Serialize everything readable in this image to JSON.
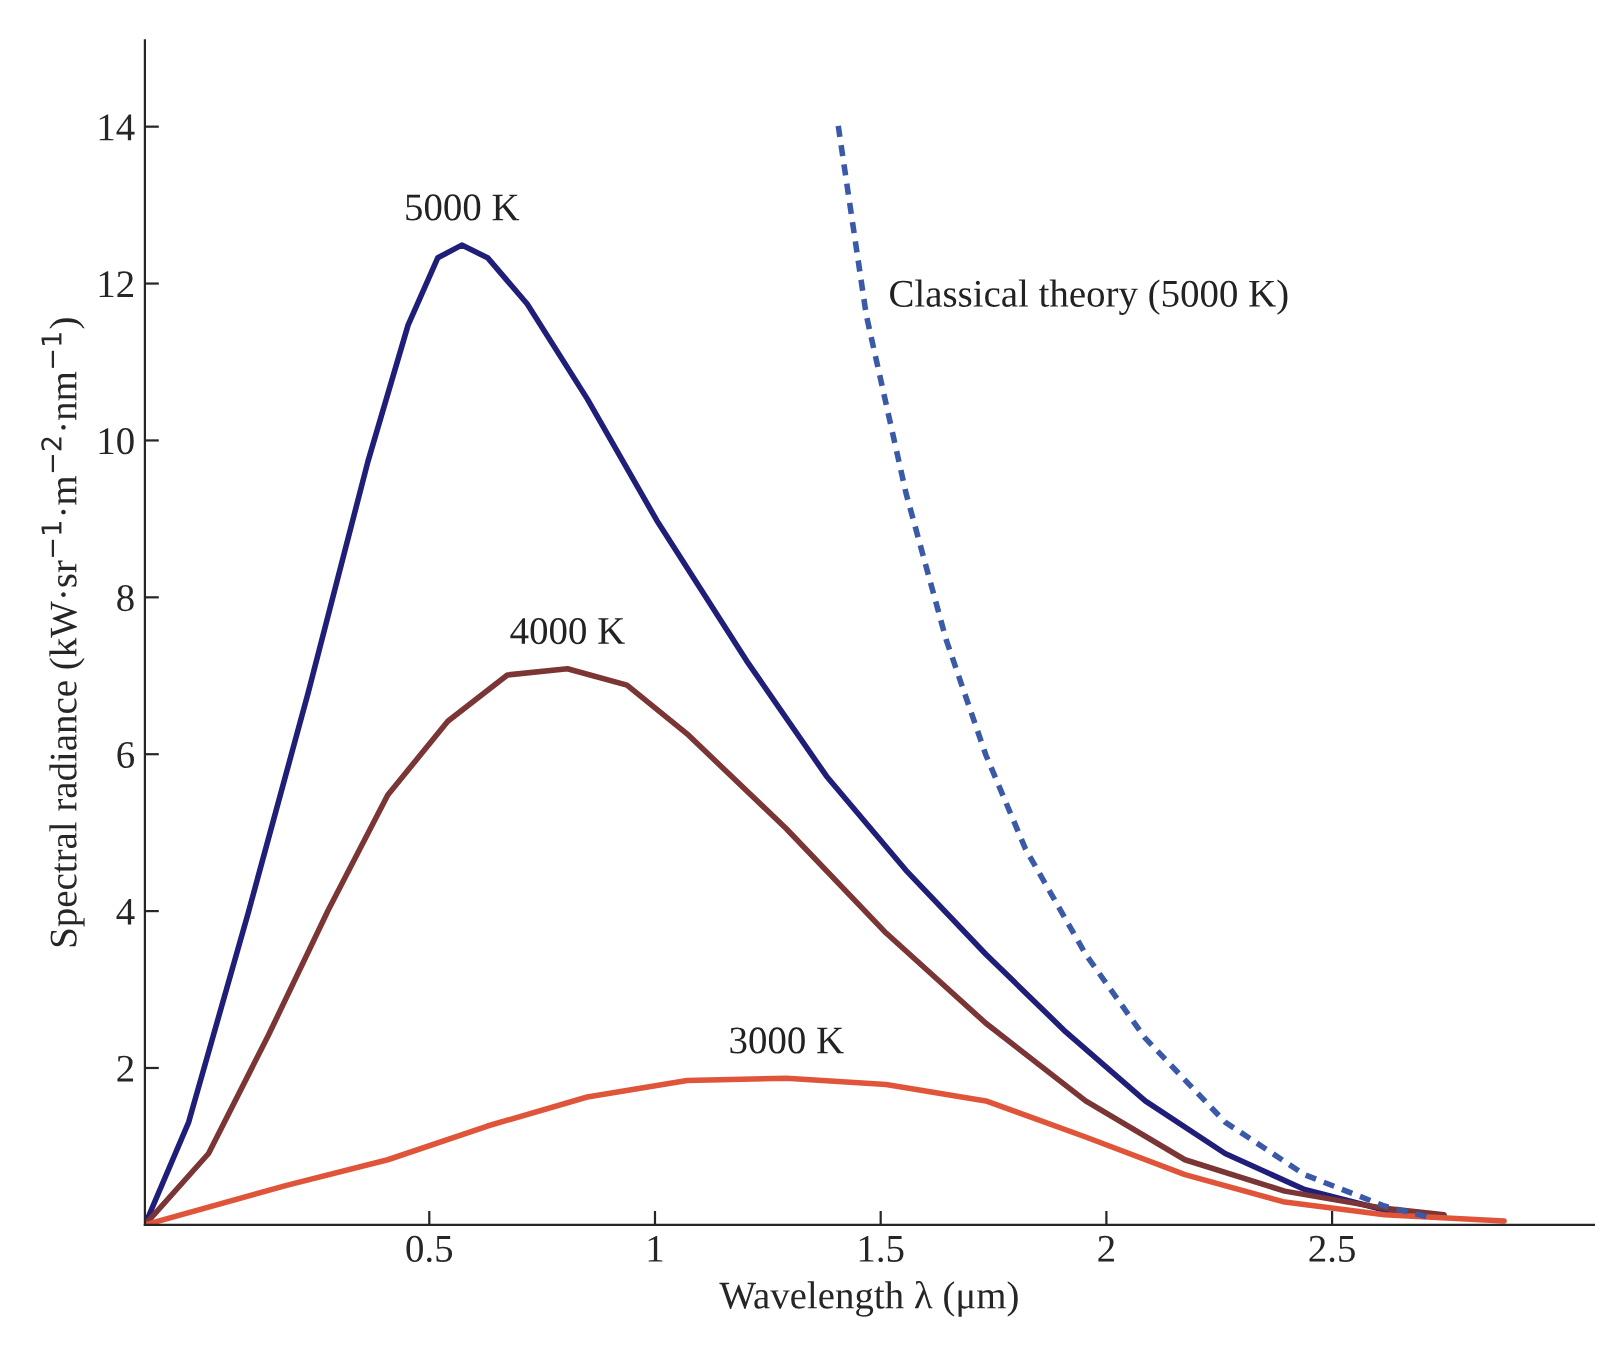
{
  "chart_data": {
    "type": "line",
    "xlabel": "Wavelength λ (μm)",
    "ylabel": "Spectral radiance (kW·sr$^{−1}$·m$^{−2}$·nm$^{−1}$)",
    "xlim": [
      -0.13,
      3.08
    ],
    "ylim": [
      0,
      15.1
    ],
    "xticks": [
      0.5,
      1,
      1.5,
      2,
      2.5
    ],
    "yticks": [
      2,
      4,
      6,
      8,
      10,
      12,
      14
    ],
    "grid": false,
    "legend": false,
    "marker": "none",
    "series": [
      {
        "name": "5000 K",
        "color": "#1f1f7a",
        "line_style": "solid",
        "x": [
          -0.13,
          -0.033,
          0.099,
          0.232,
          0.364,
          0.453,
          0.519,
          0.572,
          0.629,
          0.717,
          0.85,
          1.004,
          1.203,
          1.38,
          1.556,
          1.733,
          1.91,
          2.086,
          2.263,
          2.439,
          2.616,
          2.748
        ],
        "values": [
          0,
          1.31,
          3.98,
          6.79,
          9.73,
          11.47,
          12.33,
          12.49,
          12.33,
          11.74,
          10.53,
          8.98,
          7.19,
          5.72,
          4.52,
          3.45,
          2.46,
          1.58,
          0.91,
          0.45,
          0.19,
          0.11
        ]
      },
      {
        "name": "4000 K",
        "color": "#7b3535",
        "line_style": "solid",
        "x": [
          -0.13,
          0.011,
          0.143,
          0.276,
          0.408,
          0.541,
          0.673,
          0.806,
          0.938,
          1.071,
          1.291,
          1.512,
          1.733,
          1.954,
          2.174,
          2.395,
          2.616,
          2.748
        ],
        "values": [
          0,
          0.91,
          2.41,
          4.01,
          5.48,
          6.42,
          7.01,
          7.09,
          6.88,
          6.26,
          5.05,
          3.72,
          2.57,
          1.58,
          0.83,
          0.43,
          0.21,
          0.13
        ]
      },
      {
        "name": "3000 K",
        "color": "#e0553a",
        "line_style": "solid",
        "x": [
          -0.13,
          0.188,
          0.408,
          0.629,
          0.85,
          1.071,
          1.291,
          1.512,
          1.733,
          1.954,
          2.174,
          2.395,
          2.616,
          2.881
        ],
        "values": [
          0,
          0.51,
          0.83,
          1.26,
          1.63,
          1.84,
          1.87,
          1.79,
          1.58,
          1.12,
          0.64,
          0.29,
          0.13,
          0.05
        ]
      },
      {
        "name": "Classical theory (5000 K)",
        "color": "#3a5aa8",
        "line_style": "dashed",
        "x": [
          1.406,
          1.468,
          1.556,
          1.645,
          1.733,
          1.821,
          1.954,
          2.086,
          2.263,
          2.439,
          2.616,
          2.726
        ],
        "values": [
          14.01,
          11.6,
          9.33,
          7.46,
          5.99,
          4.79,
          3.45,
          2.38,
          1.31,
          0.64,
          0.24,
          0.08
        ]
      }
    ]
  }
}
